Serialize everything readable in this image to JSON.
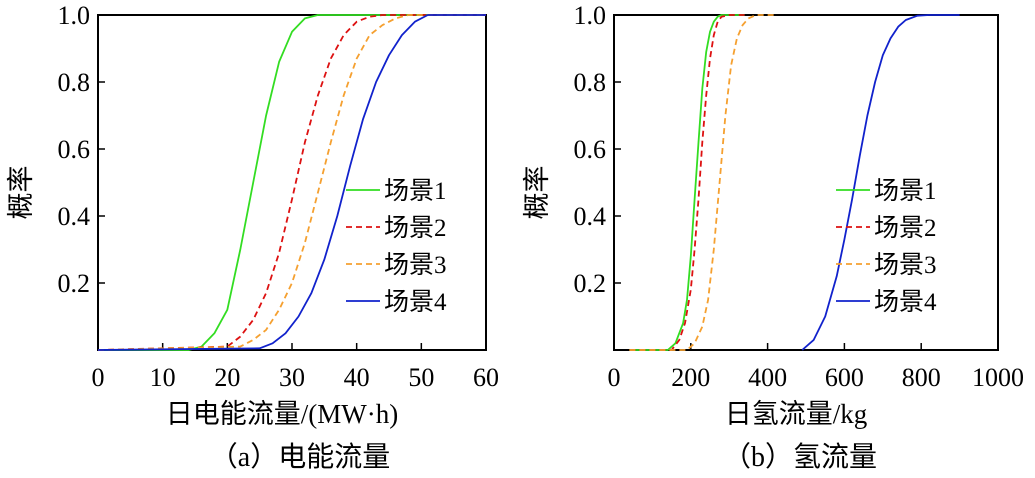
{
  "chart_data": [
    {
      "type": "line",
      "caption": "（a）电能流量",
      "xlabel": "日电能流量/(MW·h)",
      "ylabel": "概率",
      "xlim": [
        0,
        60
      ],
      "ylim": [
        0,
        1.0
      ],
      "xticks": [
        0,
        10,
        20,
        30,
        40,
        50,
        60
      ],
      "yticks": [
        0.2,
        0.4,
        0.6,
        0.8,
        1.0
      ],
      "ytick_labels": [
        "0.2",
        "0.4",
        "0.6",
        "0.8",
        "1.0"
      ],
      "legend_position": "center-right",
      "series": [
        {
          "name": "场景1",
          "color": "#33dd22",
          "dash": "solid",
          "x": [
            0,
            14,
            16,
            18,
            20,
            22,
            24,
            26,
            28,
            30,
            32,
            34,
            36,
            60
          ],
          "y": [
            0,
            0,
            0.01,
            0.05,
            0.12,
            0.3,
            0.5,
            0.7,
            0.86,
            0.95,
            0.99,
            1.0,
            1.0,
            1.0
          ]
        },
        {
          "name": "场景2",
          "color": "#dd1111",
          "dash": "dashed",
          "x": [
            0,
            20,
            22,
            24,
            26,
            28,
            30,
            32,
            34,
            36,
            38,
            40,
            42,
            44,
            60
          ],
          "y": [
            0,
            0.01,
            0.04,
            0.09,
            0.17,
            0.29,
            0.45,
            0.62,
            0.76,
            0.87,
            0.94,
            0.98,
            0.995,
            1.0,
            1.0
          ]
        },
        {
          "name": "场景3",
          "color": "#f5a030",
          "dash": "dashed",
          "x": [
            0,
            22,
            24,
            26,
            28,
            30,
            32,
            34,
            36,
            38,
            40,
            42,
            44,
            46,
            48,
            60
          ],
          "y": [
            0,
            0.01,
            0.03,
            0.06,
            0.12,
            0.2,
            0.32,
            0.47,
            0.62,
            0.76,
            0.87,
            0.94,
            0.97,
            0.99,
            1.0,
            1.0
          ]
        },
        {
          "name": "场景4",
          "color": "#1122cc",
          "dash": "solid",
          "x": [
            0,
            25,
            27,
            29,
            31,
            33,
            35,
            37,
            39,
            41,
            43,
            45,
            47,
            49,
            51,
            60
          ],
          "y": [
            0,
            0.005,
            0.02,
            0.05,
            0.1,
            0.17,
            0.27,
            0.4,
            0.55,
            0.69,
            0.8,
            0.88,
            0.94,
            0.98,
            1.0,
            1.0
          ]
        }
      ]
    },
    {
      "type": "line",
      "caption": "（b）氢流量",
      "xlabel": "日氢流量/kg",
      "ylabel": "概率",
      "xlim": [
        0,
        1000
      ],
      "ylim": [
        0,
        1.0
      ],
      "xticks": [
        0,
        200,
        400,
        600,
        800,
        1000
      ],
      "yticks": [
        0.2,
        0.4,
        0.6,
        0.8,
        1.0
      ],
      "ytick_labels": [
        "0.2",
        "0.4",
        "0.6",
        "0.8",
        "1.0"
      ],
      "legend_position": "center-right",
      "series": [
        {
          "name": "场景1",
          "color": "#33dd22",
          "dash": "solid",
          "x": [
            40,
            140,
            160,
            180,
            190,
            200,
            210,
            220,
            230,
            240,
            250,
            260,
            270,
            280,
            300,
            340
          ],
          "y": [
            0,
            0,
            0.02,
            0.08,
            0.15,
            0.28,
            0.45,
            0.62,
            0.78,
            0.89,
            0.95,
            0.98,
            0.995,
            1.0,
            1.0,
            1.0
          ]
        },
        {
          "name": "场景2",
          "color": "#dd1111",
          "dash": "dashed",
          "x": [
            40,
            150,
            170,
            185,
            200,
            210,
            220,
            230,
            240,
            250,
            260,
            270,
            280,
            300,
            340
          ],
          "y": [
            0,
            0,
            0.03,
            0.08,
            0.18,
            0.3,
            0.45,
            0.62,
            0.76,
            0.87,
            0.94,
            0.98,
            0.995,
            1.0,
            1.0
          ]
        },
        {
          "name": "场景3",
          "color": "#f5a030",
          "dash": "dashed",
          "x": [
            40,
            190,
            210,
            230,
            245,
            260,
            275,
            290,
            305,
            320,
            335,
            350,
            370,
            400,
            420
          ],
          "y": [
            0,
            0,
            0.02,
            0.07,
            0.15,
            0.3,
            0.5,
            0.7,
            0.85,
            0.93,
            0.97,
            0.99,
            1.0,
            1.0,
            1.0
          ]
        },
        {
          "name": "场景4",
          "color": "#1122cc",
          "dash": "solid",
          "x": [
            490,
            520,
            550,
            580,
            600,
            620,
            640,
            660,
            680,
            700,
            720,
            740,
            760,
            790,
            820,
            900
          ],
          "y": [
            0,
            0.03,
            0.1,
            0.22,
            0.33,
            0.45,
            0.58,
            0.7,
            0.8,
            0.88,
            0.93,
            0.965,
            0.985,
            0.998,
            1.0,
            1.0
          ]
        }
      ]
    }
  ]
}
